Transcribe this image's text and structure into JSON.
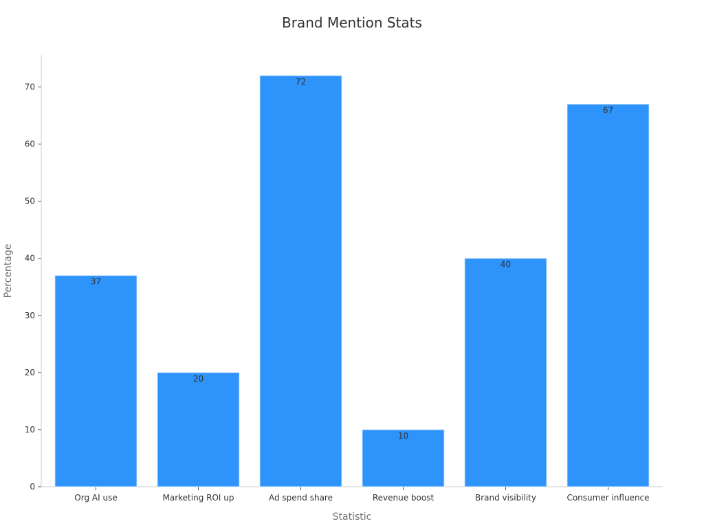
{
  "chart_data": {
    "type": "bar",
    "title": "Brand Mention Stats",
    "xlabel": "Statistic",
    "ylabel": "Percentage",
    "categories": [
      "Org AI use",
      "Marketing ROI up",
      "Ad spend share",
      "Revenue boost",
      "Brand visibility",
      "Consumer influence"
    ],
    "values": [
      37,
      20,
      72,
      10,
      40,
      67
    ],
    "data_labels": [
      "37",
      "20",
      "72",
      "10",
      "40",
      "67"
    ],
    "yticks": [
      0,
      10,
      20,
      30,
      40,
      50,
      60,
      70
    ],
    "ylim": [
      0,
      75.6
    ],
    "grid": false,
    "legend": "none",
    "bar_color": "#2e93fa",
    "bar_edge_color": "#d9ecff"
  }
}
